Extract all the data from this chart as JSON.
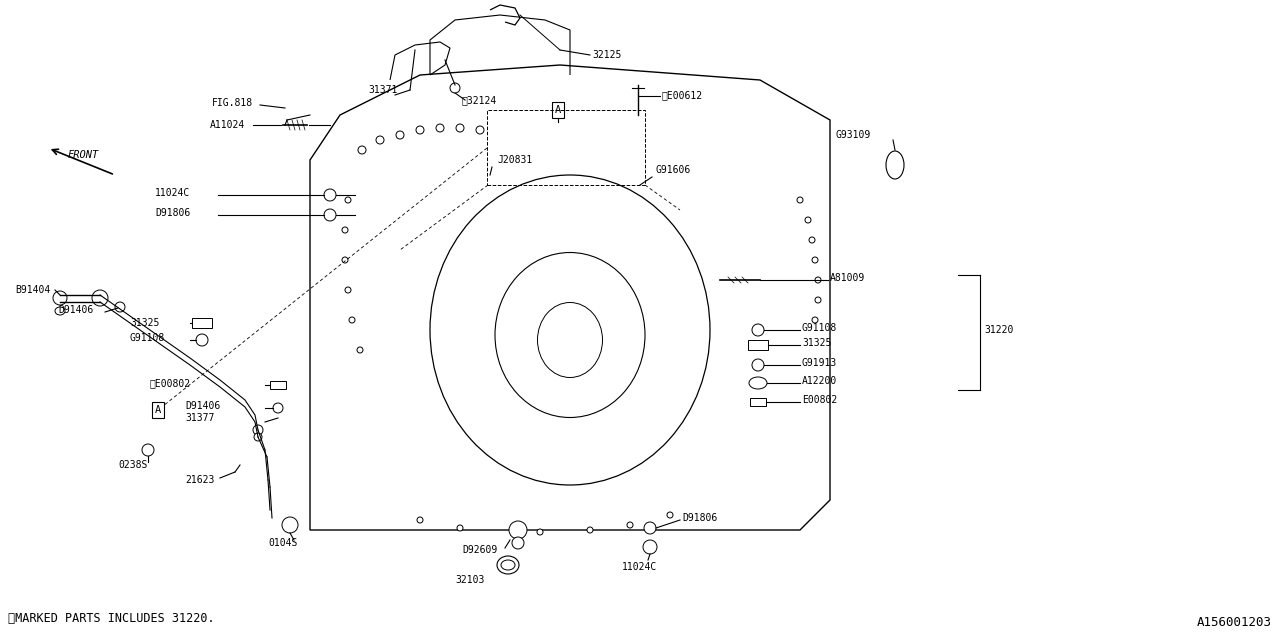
{
  "bg_color": "#ffffff",
  "line_color": "#000000",
  "fig_width": 12.8,
  "fig_height": 6.4,
  "font_size": 7.0,
  "diagram_id": "A156001203",
  "footer_note": "※MARKED PARTS INCLUDES 31220.",
  "xlim": [
    0,
    1280
  ],
  "ylim": [
    0,
    640
  ]
}
